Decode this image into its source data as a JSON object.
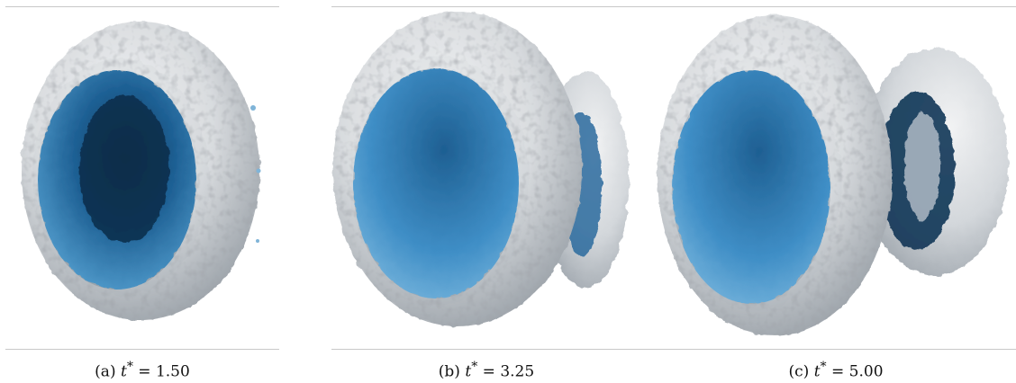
{
  "figure": {
    "panels": [
      {
        "label": "(a)",
        "var": "t",
        "sup": "*",
        "eq": " = 1.50"
      },
      {
        "label": "(b)",
        "var": "t",
        "sup": "*",
        "eq": " = 3.25"
      },
      {
        "label": "(c)",
        "var": "t",
        "sup": "*",
        "eq": " = 5.00"
      }
    ],
    "colors": {
      "surface": "#e6e8ea",
      "shadow": "#8f969d",
      "interior_dark": "#0f3556",
      "interior_mid": "#2e7fb8",
      "interior_light": "#5aa6d6",
      "rule": "#c8c8c8"
    }
  }
}
